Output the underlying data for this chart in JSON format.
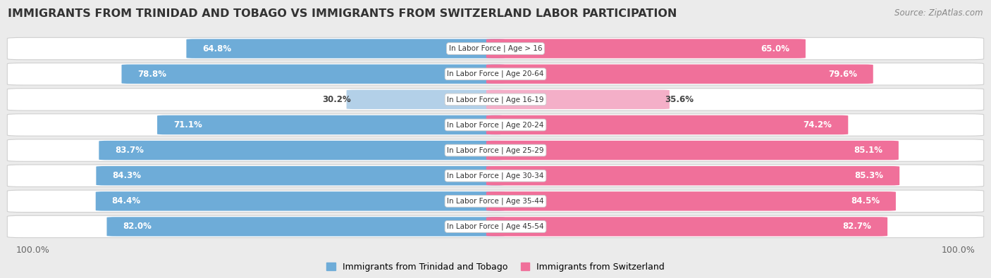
{
  "title": "IMMIGRANTS FROM TRINIDAD AND TOBAGO VS IMMIGRANTS FROM SWITZERLAND LABOR PARTICIPATION",
  "source": "Source: ZipAtlas.com",
  "categories": [
    "In Labor Force | Age > 16",
    "In Labor Force | Age 20-64",
    "In Labor Force | Age 16-19",
    "In Labor Force | Age 20-24",
    "In Labor Force | Age 25-29",
    "In Labor Force | Age 30-34",
    "In Labor Force | Age 35-44",
    "In Labor Force | Age 45-54"
  ],
  "trinidad_values": [
    64.8,
    78.8,
    30.2,
    71.1,
    83.7,
    84.3,
    84.4,
    82.0
  ],
  "switzerland_values": [
    65.0,
    79.6,
    35.6,
    74.2,
    85.1,
    85.3,
    84.5,
    82.7
  ],
  "trinidad_color": "#6eacd8",
  "trinidad_color_light": "#b3d0e8",
  "switzerland_color": "#f0709a",
  "switzerland_color_light": "#f4afc8",
  "label_trinidad": "Immigrants from Trinidad and Tobago",
  "label_switzerland": "Immigrants from Switzerland",
  "title_fontsize": 11.5,
  "source_fontsize": 8.5,
  "bar_label_fontsize": 8.5,
  "category_fontsize": 7.5,
  "legend_fontsize": 9,
  "footer_fontsize": 9
}
